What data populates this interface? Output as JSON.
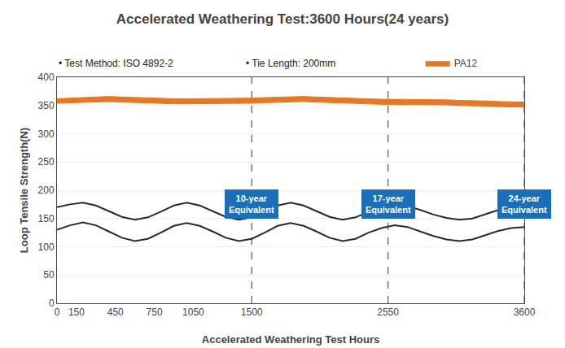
{
  "chart_data": {
    "type": "line",
    "title": "Accelerated Weathering Test:3600 Hours(24 years)",
    "x_label": "Accelerated Weathering Test Hours",
    "y_label": "Loop Tensile Strength(N)",
    "notes": [
      "• Test Method: ISO 4892-2",
      "• Tie Length: 200mm"
    ],
    "x": [
      0,
      100,
      200,
      300,
      400,
      500,
      600,
      700,
      800,
      900,
      1000,
      1100,
      1200,
      1300,
      1400,
      1500,
      1600,
      1700,
      1800,
      1900,
      2000,
      2100,
      2200,
      2300,
      2400,
      2500,
      2600,
      2700,
      2800,
      2900,
      3000,
      3100,
      3200,
      3300,
      3400,
      3500,
      3600
    ],
    "series": [
      {
        "name": "PA12",
        "type": "band",
        "color": "#E87722",
        "upper": [
          362,
          363,
          365,
          366,
          366,
          365,
          364,
          364,
          363,
          362,
          362,
          362,
          362,
          362,
          362,
          363,
          364,
          365,
          366,
          366,
          365,
          364,
          363,
          362,
          361,
          361,
          361,
          361,
          361,
          360,
          360,
          359,
          359,
          358,
          357,
          357,
          356
        ],
        "lower": [
          354,
          355,
          356,
          357,
          357,
          356,
          355,
          355,
          354,
          353,
          353,
          353,
          353,
          353,
          353,
          354,
          355,
          356,
          357,
          357,
          356,
          355,
          354,
          353,
          352,
          352,
          352,
          352,
          352,
          351,
          351,
          350,
          350,
          349,
          348,
          348,
          347
        ]
      },
      {
        "type": "line",
        "color": "#2a2a2a",
        "values": [
          170,
          175,
          178,
          173,
          163,
          153,
          148,
          152,
          162,
          173,
          178,
          173,
          163,
          153,
          148,
          152,
          162,
          173,
          178,
          173,
          163,
          153,
          148,
          152,
          162,
          170,
          175,
          172,
          165,
          157,
          151,
          148,
          150,
          157,
          165,
          170,
          172
        ]
      },
      {
        "type": "line",
        "color": "#2a2a2a",
        "values": [
          130,
          138,
          143,
          138,
          127,
          116,
          110,
          114,
          125,
          137,
          142,
          137,
          127,
          116,
          110,
          114,
          125,
          137,
          142,
          137,
          127,
          116,
          110,
          114,
          125,
          133,
          138,
          135,
          127,
          119,
          113,
          110,
          113,
          120,
          128,
          133,
          135
        ]
      }
    ],
    "vlines": {
      "x": [
        1500,
        2550,
        3600
      ],
      "line_style": "dashed",
      "color": "#555555"
    },
    "annotations": [
      {
        "x": 1500,
        "y": 175,
        "text": "10-year\nEquivalent"
      },
      {
        "x": 2550,
        "y": 175,
        "text": "17-year\nEquivalent"
      },
      {
        "x": 3600,
        "y": 175,
        "text": "24-year\nEquivalent"
      }
    ],
    "annotation_color": "#1a6fba",
    "annotation_text_color": "white",
    "xlim": [
      0,
      3600
    ],
    "ylim": [
      0,
      400
    ],
    "xticks": [
      0,
      150,
      450,
      750,
      1050,
      1500,
      2550,
      3600
    ],
    "yticks": [
      0,
      50,
      100,
      150,
      200,
      250,
      300,
      350,
      400
    ],
    "grid": true,
    "legend": "top"
  }
}
